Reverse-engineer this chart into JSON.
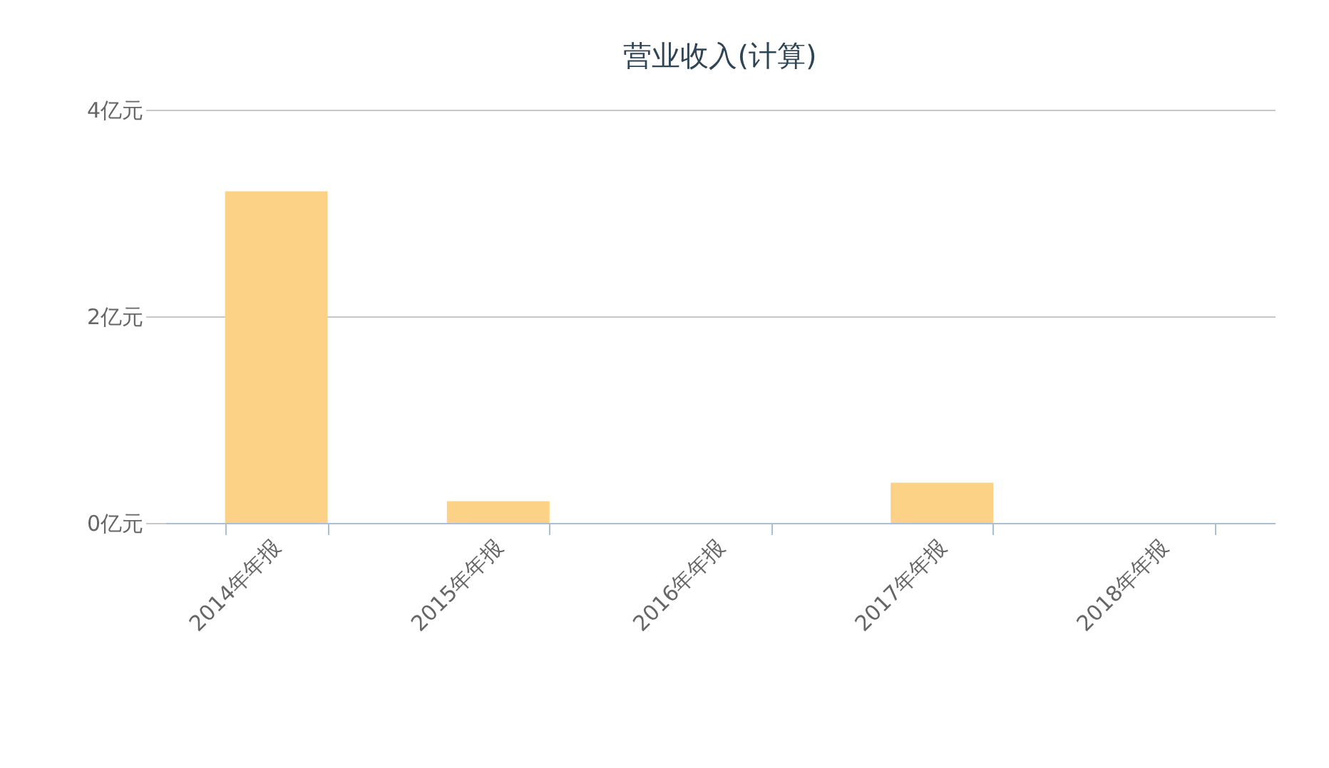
{
  "chart_data": {
    "type": "bar",
    "title": "营业收入(计算)",
    "categories": [
      "2014年年报",
      "2015年年报",
      "2016年年报",
      "2017年年报",
      "2018年年报"
    ],
    "values": [
      3.21,
      0.21,
      0,
      0.39,
      0
    ],
    "color": "#fcd386",
    "ylim": [
      0,
      4
    ],
    "yticks": [
      {
        "value": 0,
        "label": "0亿元"
      },
      {
        "value": 2,
        "label": "2亿元"
      },
      {
        "value": 4,
        "label": "4亿元"
      }
    ],
    "grid": "y"
  }
}
